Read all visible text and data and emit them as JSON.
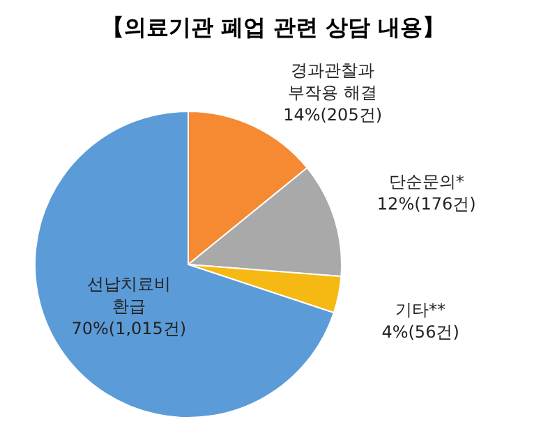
{
  "chart_data": {
    "type": "pie",
    "title": "【의료기관 폐업 관련 상담 내용】",
    "categories": [
      "경과관찰과 부작용 해결",
      "단순문의*",
      "기타**",
      "선납치료비 환급"
    ],
    "values": [
      205,
      176,
      56,
      1015
    ],
    "value_labels": [
      "14%(205건)",
      "12%(176건)",
      "4%(56건)",
      "70%(1,015건)"
    ],
    "colors": [
      "#f58a33",
      "#a9a9a9",
      "#f6b913",
      "#5b9bd8"
    ]
  }
}
